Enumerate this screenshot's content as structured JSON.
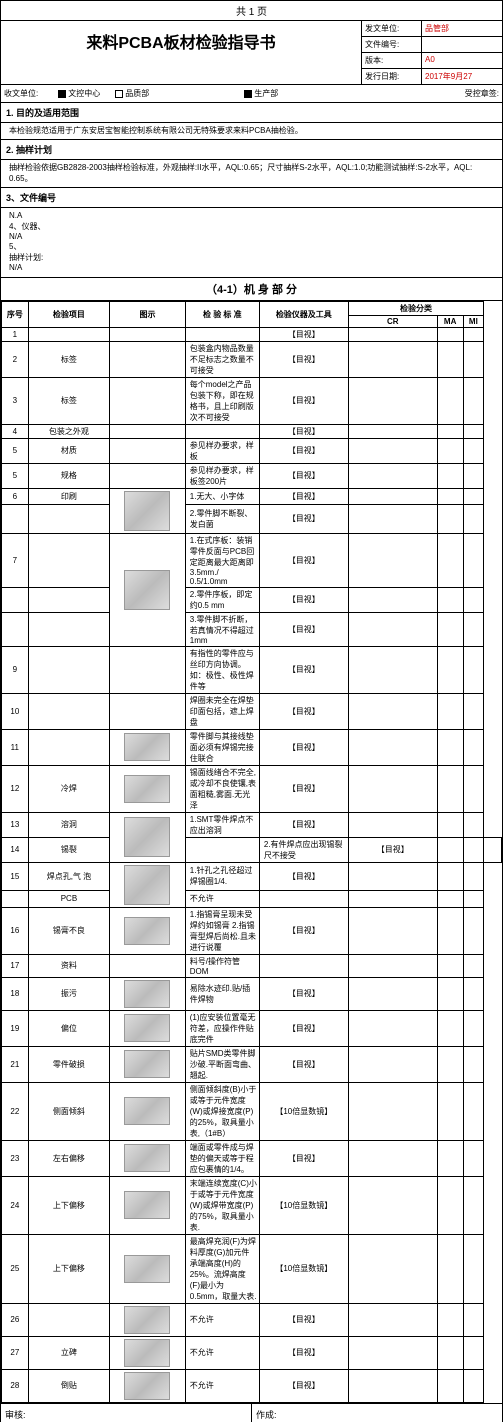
{
  "pageNum": "共 1 页",
  "title": "来料PCBA板材检验指导书",
  "info": {
    "dept_label": "发文单位:",
    "dept": "品管部",
    "docno_label": "文件编号:",
    "docno": "",
    "ver_label": "版本:",
    "ver": "A0",
    "date_label": "发行日期:",
    "date": "2017年9月27"
  },
  "dist": {
    "label": "收文单位:",
    "items": [
      "文控中心",
      "品质部",
      "生产部"
    ],
    "after_label": "受控章签:"
  },
  "sec1_title": "1. 目的及适用范围",
  "sec1_body": "本检验规范适用于广东安居宝智能控制系统有限公司无特殊要求来料PCBA抽检验。",
  "sec2_title": "2. 抽样计划",
  "sec2_body_a": "抽样检验依据GB2828-2003抽样检验标准，外观抽样:II水平，AQL:0.65；尺寸抽样S-2水平，AQL:1.0;功能测试抽样:S-2水平，AQL: 0.65。",
  "sec3_title": "3、文件编号",
  "sec3_body": "N.A\n4、仪器、\nN/A\n5、\n抽样计划:\nN/A",
  "table_title": "（4-1）机 身 部 分",
  "headers": {
    "seq": "序号",
    "item": "检验项目",
    "img": "图示",
    "std": "检 验 标 准",
    "tool": "检验仪器及工具",
    "result": "检验分类"
  },
  "rh": {
    "a": "CR",
    "b": "MA",
    "c": "MI"
  },
  "rows": [
    {
      "n": "1",
      "item": "",
      "std": "",
      "tool": "【目视】",
      "img": 0
    },
    {
      "n": "2",
      "item": "标签",
      "std": "包装盒内物品数量不足标志之数量不可接受",
      "tool": "【目视】",
      "img": 0
    },
    {
      "n": "3",
      "item": "标签",
      "std": "每个model之产品包装下称，即在规格书，且上印刷版次不可接受",
      "tool": "【目视】",
      "img": 0
    },
    {
      "n": "4",
      "item": "包装之外观",
      "std": "",
      "tool": "【目视】",
      "img": 0
    },
    {
      "n": "5",
      "item": "材质",
      "std": "参见样办要求，样板",
      "tool": "【目视】",
      "img": 0
    },
    {
      "n": "5",
      "item": "规格",
      "std": "参见样办要求，样板签200片",
      "tool": "【目视】",
      "img": 0
    },
    {
      "n": "6",
      "item": "印刷",
      "std": "1.无大、小字体",
      "tool": "【目视】",
      "img": 1,
      "rs": 2
    },
    {
      "n": "",
      "item": "",
      "std": "2.零件脚不断裂、发白菌",
      "tool": "【目视】",
      "img": 0
    },
    {
      "n": "7",
      "item": "",
      "std": "1.在式序板：装销零件反面与PCB回定距离最大距离即3.5mm./ 0.5/1.0mm",
      "tool": "【目视】",
      "img": 1,
      "rs": 3
    },
    {
      "n": "",
      "item": "",
      "std": "2.零件序板，即定约0.5 mm",
      "tool": "【目视】",
      "img": 0
    },
    {
      "n": "",
      "item": "",
      "std": "3.零件脚不折断，若真情况不得超过1mm",
      "tool": "【目视】",
      "img": 0
    },
    {
      "n": "9",
      "item": "",
      "std": "有指性的零件应与丝印方向协调。如：极性、极性焊件等",
      "tool": "【目视】",
      "img": 0
    },
    {
      "n": "10",
      "item": "",
      "std": "焊圈未完全在焊垫印面包括，遮上焊盘",
      "tool": "【目视】",
      "img": 0
    },
    {
      "n": "11",
      "item": "",
      "std": "零件脚与其接线垫面必须有焊锡完接住联合",
      "tool": "【目视】",
      "img": 1
    },
    {
      "n": "12",
      "item": "冷焊",
      "std": "锡面线绪合不完全,或冷却不良使镶,表面粗糙,雾面.无光泽",
      "tool": "【目视】",
      "img": 1
    },
    {
      "n": "13",
      "item": "溶洞",
      "std": "1.SMT零件焊点不应出溶洞",
      "tool": "【目视】",
      "img": 1,
      "rs": 2
    },
    {
      "n": "14",
      "item": "锡裂",
      "std": "2.有件焊点应出现锡裂尺不接受",
      "tool": "【目视】",
      "img": 0
    },
    {
      "n": "15",
      "item": "焊点孔,气 泡",
      "std": "1.针孔之孔径超过焊锡圈1/4.",
      "tool": "【目视】",
      "img": 1,
      "rs": 2
    },
    {
      "n": "",
      "item": "PCB",
      "std": "不允许",
      "tool": "",
      "img": 0
    },
    {
      "n": "16",
      "item": "锡膏不良",
      "std": "1.指锡膏呈现未受焊约如锡膏  2.指锡膏型焊后尚松.且未进行说覆",
      "tool": "【目视】",
      "img": 1
    },
    {
      "n": "17",
      "item": "资料",
      "std": "料号/操作符管DOM",
      "tool": "",
      "img": 0
    },
    {
      "n": "18",
      "item": "振污",
      "std": "易除水迹印.贴/插件焊物",
      "tool": "【目视】",
      "img": 1
    },
    {
      "n": "19",
      "item": "偏位",
      "std": "(1)应安装位置毫无符差，应操作件贴底完件",
      "tool": "【目视】",
      "img": 1
    },
    {
      "n": "21",
      "item": "零件破损",
      "std": "贴片SMD类零件脚沙破.平断面弯曲、翘起.",
      "tool": "【目视】",
      "img": 1
    },
    {
      "n": "22",
      "item": "侧面倾斜",
      "std": "侧面倾斜度(B)小于或等于元件宽度(W)或焊接宽度(P)的25%，取具量小表,（1#B）",
      "tool": "【10倍显数镜】",
      "img": 1
    },
    {
      "n": "23",
      "item": "左右偏移",
      "std": "端面或零件成与焊垫的偏天或等于程应包裹情的1/4。",
      "tool": "【目视】",
      "img": 1
    },
    {
      "n": "24",
      "item": "上下偏移",
      "std": "末端连续宽度(C)小于或等于元件宽度(W)或焊带宽度(P)的75%，取具量小表.",
      "tool": "【10倍显数镜】",
      "img": 1
    },
    {
      "n": "25",
      "item": "上下偏移",
      "std": "最高焊充润(F)为焊料厚度(G)加元件承端高度(H)的25%。流焊高度 (F)最小为 0.5mm，取量大表.",
      "tool": "【10倍显数镜】",
      "img": 1
    },
    {
      "n": "26",
      "item": "",
      "std": "不允许",
      "tool": "【目视】",
      "img": 1
    },
    {
      "n": "27",
      "item": "立碑",
      "std": "不允许",
      "tool": "【目视】",
      "img": 1
    },
    {
      "n": "28",
      "item": "倒贴",
      "std": "不允许",
      "tool": "【目视】",
      "img": 1
    }
  ],
  "footer": {
    "approve": "审核:",
    "make": "作成:"
  }
}
